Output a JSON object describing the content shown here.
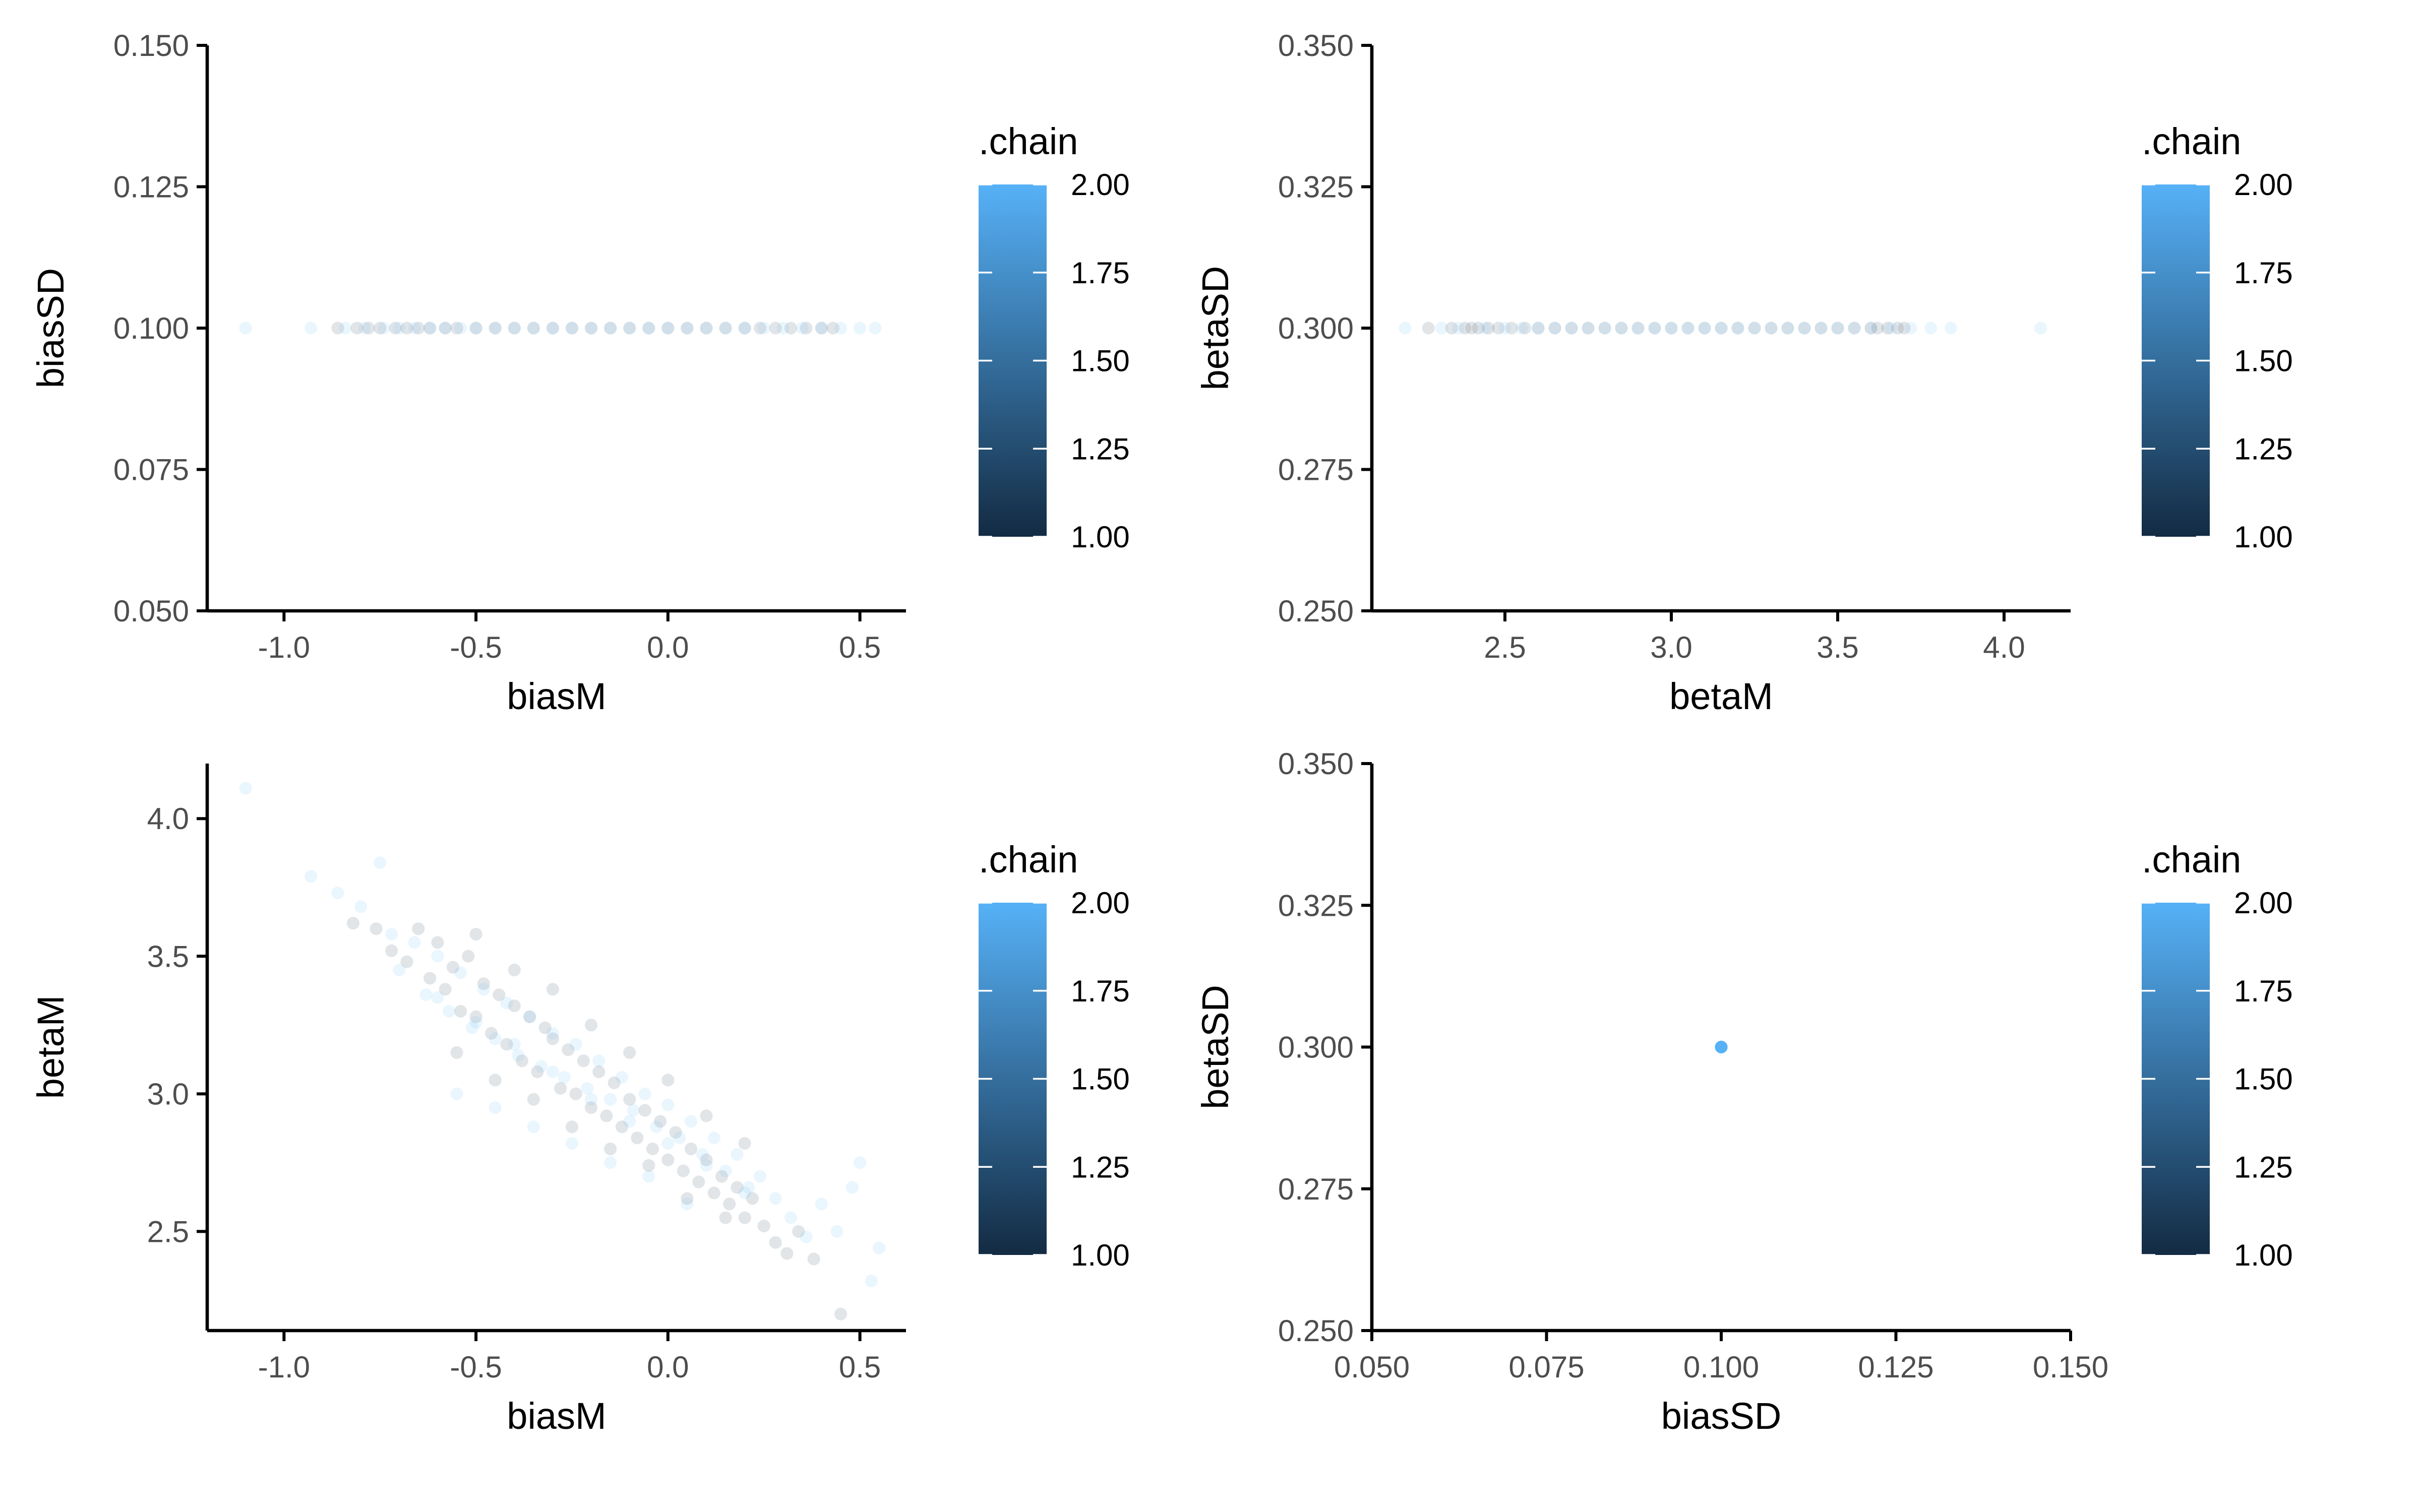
{
  "colors": {
    "low": "#132B43",
    "high": "#56B1F7",
    "axis": "#000000",
    "tick_text": "#4d4d4d"
  },
  "chart_data": [
    {
      "type": "scatter",
      "title": "",
      "xlabel": "biasM",
      "ylabel": "biasSD",
      "xlim": [
        -1.2,
        0.62
      ],
      "ylim": [
        0.05,
        0.15
      ],
      "xticks": [
        -1.0,
        -0.5,
        0.0,
        0.5
      ],
      "xtick_labels": [
        "-1.0",
        "-0.5",
        "0.0",
        "0.5"
      ],
      "yticks": [
        0.05,
        0.075,
        0.1,
        0.125,
        0.15
      ],
      "ytick_labels": [
        "0.050",
        "0.075",
        "0.100",
        "0.125",
        "0.150"
      ],
      "grid": false,
      "point_alpha": 0.12,
      "color_variable": ".chain",
      "series": [
        {
          "chain": 1,
          "x": [
            -0.86,
            -0.81,
            -0.78,
            -0.75,
            -0.71,
            -0.68,
            -0.65,
            -0.62,
            -0.58,
            -0.55,
            -0.5,
            -0.45,
            -0.4,
            -0.35,
            -0.3,
            -0.25,
            -0.2,
            -0.15,
            -0.1,
            -0.05,
            0.0,
            0.05,
            0.1,
            0.15,
            0.2,
            0.24,
            0.28,
            0.32,
            0.36,
            0.4,
            0.43
          ],
          "y": [
            0.1,
            0.1,
            0.1,
            0.1,
            0.1,
            0.1,
            0.1,
            0.1,
            0.1,
            0.1,
            0.1,
            0.1,
            0.1,
            0.1,
            0.1,
            0.1,
            0.1,
            0.1,
            0.1,
            0.1,
            0.1,
            0.1,
            0.1,
            0.1,
            0.1,
            0.1,
            0.1,
            0.1,
            0.1,
            0.1,
            0.1
          ]
        },
        {
          "chain": 2,
          "x": [
            -1.1,
            -0.93,
            -0.84,
            -0.79,
            -0.74,
            -0.7,
            -0.66,
            -0.62,
            -0.58,
            -0.54,
            -0.5,
            -0.45,
            -0.4,
            -0.35,
            -0.3,
            -0.25,
            -0.2,
            -0.15,
            -0.1,
            -0.05,
            0.0,
            0.05,
            0.1,
            0.15,
            0.2,
            0.25,
            0.3,
            0.35,
            0.4,
            0.45,
            0.5,
            0.54
          ],
          "y": [
            0.1,
            0.1,
            0.1,
            0.1,
            0.1,
            0.1,
            0.1,
            0.1,
            0.1,
            0.1,
            0.1,
            0.1,
            0.1,
            0.1,
            0.1,
            0.1,
            0.1,
            0.1,
            0.1,
            0.1,
            0.1,
            0.1,
            0.1,
            0.1,
            0.1,
            0.1,
            0.1,
            0.1,
            0.1,
            0.1,
            0.1,
            0.1
          ]
        }
      ],
      "legend": {
        "title": ".chain",
        "min": 1.0,
        "max": 2.0,
        "labels": [
          "2.00",
          "1.75",
          "1.50",
          "1.25",
          "1.00"
        ]
      }
    },
    {
      "type": "scatter",
      "title": "",
      "xlabel": "betaM",
      "ylabel": "betaSD",
      "xlim": [
        2.1,
        4.2
      ],
      "ylim": [
        0.25,
        0.35
      ],
      "xticks": [
        2.5,
        3.0,
        3.5,
        4.0
      ],
      "xtick_labels": [
        "2.5",
        "3.0",
        "3.5",
        "4.0"
      ],
      "yticks": [
        0.25,
        0.275,
        0.3,
        0.325,
        0.35
      ],
      "ytick_labels": [
        "0.250",
        "0.275",
        "0.300",
        "0.325",
        "0.350"
      ],
      "grid": false,
      "point_alpha": 0.12,
      "color_variable": ".chain",
      "series": [
        {
          "chain": 1,
          "x": [
            2.27,
            2.34,
            2.38,
            2.4,
            2.42,
            2.45,
            2.48,
            2.52,
            2.56,
            2.6,
            2.65,
            2.7,
            2.75,
            2.8,
            2.85,
            2.9,
            2.95,
            3.0,
            3.05,
            3.1,
            3.15,
            3.2,
            3.25,
            3.3,
            3.35,
            3.4,
            3.45,
            3.5,
            3.55,
            3.6,
            3.62,
            3.65,
            3.68,
            3.7
          ],
          "y": [
            0.3,
            0.3,
            0.3,
            0.3,
            0.3,
            0.3,
            0.3,
            0.3,
            0.3,
            0.3,
            0.3,
            0.3,
            0.3,
            0.3,
            0.3,
            0.3,
            0.3,
            0.3,
            0.3,
            0.3,
            0.3,
            0.3,
            0.3,
            0.3,
            0.3,
            0.3,
            0.3,
            0.3,
            0.3,
            0.3,
            0.3,
            0.3,
            0.3,
            0.3
          ]
        },
        {
          "chain": 2,
          "x": [
            2.2,
            2.31,
            2.36,
            2.44,
            2.5,
            2.55,
            2.6,
            2.65,
            2.7,
            2.75,
            2.8,
            2.85,
            2.9,
            2.95,
            3.0,
            3.05,
            3.1,
            3.15,
            3.2,
            3.25,
            3.3,
            3.35,
            3.4,
            3.45,
            3.5,
            3.55,
            3.6,
            3.66,
            3.72,
            3.78,
            3.84,
            4.11
          ],
          "y": [
            0.3,
            0.3,
            0.3,
            0.3,
            0.3,
            0.3,
            0.3,
            0.3,
            0.3,
            0.3,
            0.3,
            0.3,
            0.3,
            0.3,
            0.3,
            0.3,
            0.3,
            0.3,
            0.3,
            0.3,
            0.3,
            0.3,
            0.3,
            0.3,
            0.3,
            0.3,
            0.3,
            0.3,
            0.3,
            0.3,
            0.3,
            0.3
          ]
        }
      ],
      "legend": {
        "title": ".chain",
        "min": 1.0,
        "max": 2.0,
        "labels": [
          "2.00",
          "1.75",
          "1.50",
          "1.25",
          "1.00"
        ]
      }
    },
    {
      "type": "scatter",
      "title": "",
      "xlabel": "biasM",
      "ylabel": "betaM",
      "xlim": [
        -1.2,
        0.62
      ],
      "ylim": [
        2.14,
        4.2
      ],
      "xticks": [
        -1.0,
        -0.5,
        0.0,
        0.5
      ],
      "xtick_labels": [
        "-1.0",
        "-0.5",
        "0.0",
        "0.5"
      ],
      "yticks": [
        2.5,
        3.0,
        3.5,
        4.0
      ],
      "ytick_labels": [
        "2.5",
        "3.0",
        "3.5",
        "4.0"
      ],
      "grid": false,
      "point_alpha": 0.12,
      "color_variable": ".chain",
      "relationship": "strong negative correlation, approx betaM = 2.72 - 0.88*biasM",
      "series": [
        {
          "chain": 1,
          "x": [
            -0.82,
            -0.76,
            -0.72,
            -0.68,
            -0.65,
            -0.62,
            -0.6,
            -0.58,
            -0.56,
            -0.54,
            -0.52,
            -0.5,
            -0.48,
            -0.46,
            -0.44,
            -0.42,
            -0.4,
            -0.38,
            -0.36,
            -0.34,
            -0.32,
            -0.3,
            -0.28,
            -0.26,
            -0.24,
            -0.22,
            -0.2,
            -0.18,
            -0.16,
            -0.14,
            -0.12,
            -0.1,
            -0.08,
            -0.06,
            -0.04,
            -0.02,
            0.0,
            0.02,
            0.04,
            0.06,
            0.08,
            0.1,
            0.12,
            0.14,
            0.16,
            0.18,
            0.2,
            0.22,
            0.25,
            0.28,
            0.31,
            0.34,
            0.38,
            0.45,
            -0.55,
            -0.45,
            -0.35,
            -0.25,
            -0.15,
            -0.05,
            0.05,
            0.15,
            -0.5,
            -0.4,
            -0.3,
            -0.2,
            -0.1,
            0.0,
            0.1,
            0.2
          ],
          "y": [
            3.62,
            3.6,
            3.52,
            3.48,
            3.6,
            3.42,
            3.55,
            3.38,
            3.46,
            3.3,
            3.5,
            3.28,
            3.4,
            3.22,
            3.36,
            3.18,
            3.32,
            3.12,
            3.28,
            3.08,
            3.24,
            3.2,
            3.02,
            3.16,
            3.0,
            3.12,
            2.95,
            3.08,
            2.92,
            3.04,
            2.88,
            2.98,
            2.84,
            2.94,
            2.8,
            2.9,
            2.76,
            2.86,
            2.72,
            2.8,
            2.68,
            2.76,
            2.64,
            2.7,
            2.6,
            2.66,
            2.55,
            2.62,
            2.52,
            2.46,
            2.42,
            2.5,
            2.4,
            2.2,
            3.15,
            3.05,
            2.98,
            2.88,
            2.8,
            2.74,
            2.62,
            2.55,
            3.58,
            3.45,
            3.38,
            3.25,
            3.15,
            3.05,
            2.92,
            2.82
          ]
        },
        {
          "chain": 2,
          "x": [
            -1.1,
            -0.93,
            -0.86,
            -0.8,
            -0.75,
            -0.72,
            -0.7,
            -0.66,
            -0.63,
            -0.6,
            -0.57,
            -0.54,
            -0.51,
            -0.48,
            -0.45,
            -0.42,
            -0.39,
            -0.36,
            -0.33,
            -0.3,
            -0.27,
            -0.24,
            -0.21,
            -0.18,
            -0.15,
            -0.12,
            -0.09,
            -0.06,
            -0.03,
            0.0,
            0.03,
            0.06,
            0.09,
            0.12,
            0.15,
            0.18,
            0.21,
            0.24,
            0.28,
            0.32,
            0.36,
            0.4,
            0.44,
            0.48,
            0.5,
            0.53,
            0.55,
            -0.55,
            -0.45,
            -0.35,
            -0.25,
            -0.15,
            -0.05,
            0.05,
            -0.6,
            -0.5,
            -0.4,
            -0.3,
            -0.2,
            -0.1,
            0.0,
            0.1,
            0.2
          ],
          "y": [
            4.11,
            3.79,
            3.73,
            3.68,
            3.84,
            3.58,
            3.45,
            3.55,
            3.36,
            3.5,
            3.3,
            3.44,
            3.24,
            3.38,
            3.2,
            3.33,
            3.14,
            3.28,
            3.1,
            3.22,
            3.06,
            3.18,
            3.02,
            3.12,
            2.98,
            3.06,
            2.94,
            3.0,
            2.88,
            2.96,
            2.84,
            2.9,
            2.78,
            2.84,
            2.72,
            2.78,
            2.66,
            2.7,
            2.62,
            2.55,
            2.48,
            2.6,
            2.5,
            2.66,
            2.75,
            2.32,
            2.44,
            3.0,
            2.95,
            2.88,
            2.82,
            2.75,
            2.7,
            2.6,
            3.35,
            3.26,
            3.18,
            3.08,
            2.98,
            2.9,
            2.82,
            2.74,
            2.64
          ]
        }
      ],
      "legend": {
        "title": ".chain",
        "min": 1.0,
        "max": 2.0,
        "labels": [
          "2.00",
          "1.75",
          "1.50",
          "1.25",
          "1.00"
        ]
      }
    },
    {
      "type": "scatter",
      "title": "",
      "xlabel": "biasSD",
      "ylabel": "betaSD",
      "xlim": [
        0.05,
        0.15
      ],
      "ylim": [
        0.25,
        0.35
      ],
      "xticks": [
        0.05,
        0.075,
        0.1,
        0.125,
        0.15
      ],
      "xtick_labels": [
        "0.050",
        "0.075",
        "0.100",
        "0.125",
        "0.150"
      ],
      "yticks": [
        0.25,
        0.275,
        0.3,
        0.325,
        0.35
      ],
      "ytick_labels": [
        "0.250",
        "0.275",
        "0.300",
        "0.325",
        "0.350"
      ],
      "grid": false,
      "point_alpha": 1.0,
      "color_variable": ".chain",
      "series": [
        {
          "chain": 2,
          "x": [
            0.1
          ],
          "y": [
            0.3
          ]
        }
      ],
      "legend": {
        "title": ".chain",
        "min": 1.0,
        "max": 2.0,
        "labels": [
          "2.00",
          "1.75",
          "1.50",
          "1.25",
          "1.00"
        ]
      }
    }
  ]
}
